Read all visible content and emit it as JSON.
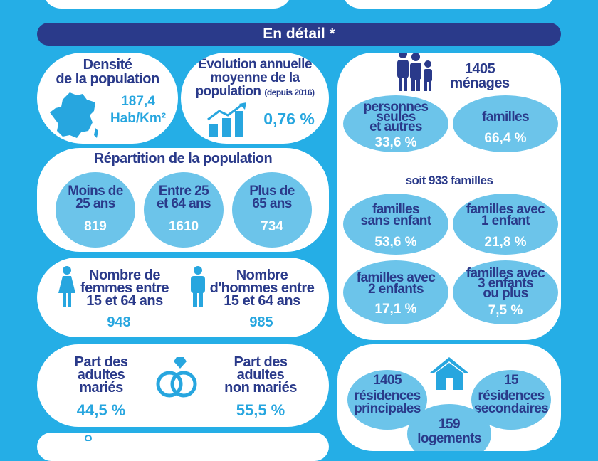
{
  "header": {
    "title": "En détail *"
  },
  "density": {
    "title_line1": "Densité",
    "title_line2": "de la population",
    "value": "187,4",
    "unit": "Hab/Km²"
  },
  "evolution": {
    "title_line1": "Évolution annuelle",
    "title_line2": "moyenne de la",
    "title_line3": "population",
    "title_note": "(depuis 2016)",
    "value": "0,76 %"
  },
  "repartition": {
    "title": "Répartition de la population",
    "groups": [
      {
        "line1": "Moins de",
        "line2": "25 ans",
        "value": "819"
      },
      {
        "line1": "Entre 25",
        "line2": "et 64 ans",
        "value": "1610"
      },
      {
        "line1": "Plus de",
        "line2": "65 ans",
        "value": "734"
      }
    ]
  },
  "gender": {
    "women": {
      "line1": "Nombre de",
      "line2": "femmes entre",
      "line3": "15 et 64 ans",
      "value": "948"
    },
    "men": {
      "line1": "Nombre",
      "line2": "d'hommes entre",
      "line3": "15 et 64 ans",
      "value": "985"
    }
  },
  "marriage": {
    "married": {
      "line1": "Part des",
      "line2": "adultes",
      "line3": "mariés",
      "value": "44,5 %"
    },
    "unmarried": {
      "line1": "Part des",
      "line2": "adultes",
      "line3": "non mariés",
      "value": "55,5 %"
    }
  },
  "households": {
    "count": "1405",
    "label": "ménages",
    "singles": {
      "line1": "personnes",
      "line2": "seules",
      "line3": "et autres",
      "value": "33,6 %"
    },
    "families": {
      "line1": "familles",
      "value": "66,4 %"
    },
    "families_total": "soit 933 familles",
    "breakdown": [
      {
        "line1": "familles",
        "line2": "sans enfant",
        "value": "53,6 %"
      },
      {
        "line1": "familles avec",
        "line2": "1 enfant",
        "value": "21,8 %"
      },
      {
        "line1": "familles avec",
        "line2": "2 enfants",
        "value": "17,1 %"
      },
      {
        "line1": "familles avec",
        "line2": "3 enfants",
        "line3": "ou plus",
        "value": "7,5 %"
      }
    ]
  },
  "housing": {
    "principal": {
      "value": "1405",
      "line1": "résidences",
      "line2": "principales"
    },
    "secondary": {
      "value": "15",
      "line1": "résidences",
      "line2": "secondaires"
    },
    "vacant": {
      "value": "159",
      "line1": "logements"
    }
  },
  "colors": {
    "background": "#25aee6",
    "navy": "#2a3a8a",
    "accent": "#27a6df",
    "bubble": "#6cc4ea"
  }
}
